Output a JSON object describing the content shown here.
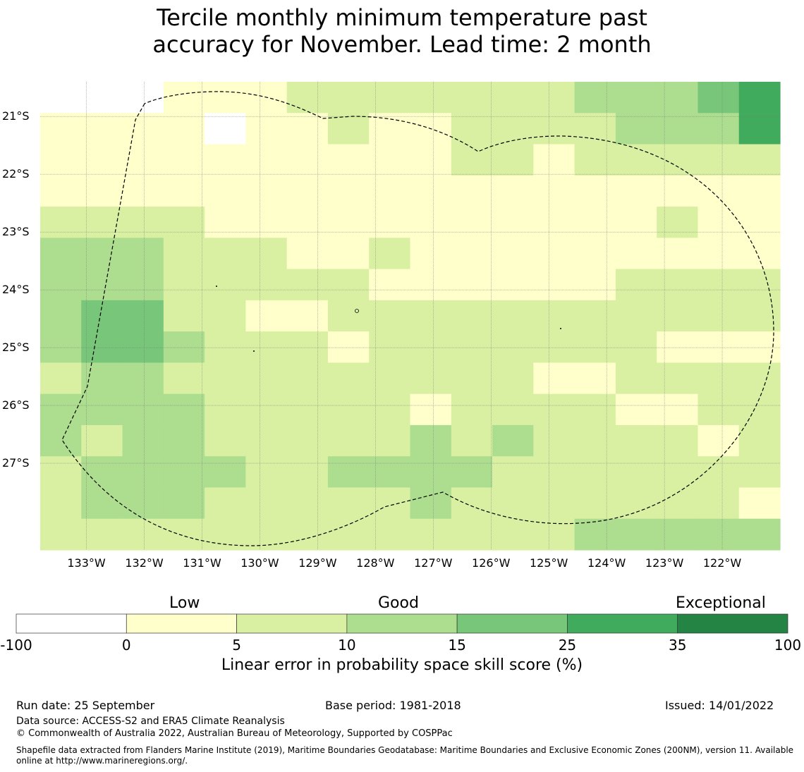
{
  "title_line1": "Tercile monthly minimum temperature past",
  "title_line2": "accuracy for November. Lead time: 2 month",
  "map": {
    "lon_min": -133.8,
    "lon_max": -121.0,
    "lat_top": -20.4,
    "lat_bottom": -28.5,
    "cell_size_deg": 0.5,
    "lat_ticks": [
      {
        "value": -21,
        "label": "21°S"
      },
      {
        "value": -22,
        "label": "22°S"
      },
      {
        "value": -23,
        "label": "23°S"
      },
      {
        "value": -24,
        "label": "24°S"
      },
      {
        "value": -25,
        "label": "25°S"
      },
      {
        "value": -26,
        "label": "26°S"
      },
      {
        "value": -27,
        "label": "27°S"
      }
    ],
    "lon_ticks": [
      {
        "value": -133,
        "label": "133°W"
      },
      {
        "value": -132,
        "label": "132°W"
      },
      {
        "value": -131,
        "label": "131°W"
      },
      {
        "value": -130,
        "label": "130°W"
      },
      {
        "value": -129,
        "label": "129°W"
      },
      {
        "value": -128,
        "label": "128°W"
      },
      {
        "value": -127,
        "label": "127°W"
      },
      {
        "value": -126,
        "label": "126°W"
      },
      {
        "value": -125,
        "label": "125°W"
      },
      {
        "value": -124,
        "label": "124°W"
      },
      {
        "value": -123,
        "label": "123°W"
      },
      {
        "value": -122,
        "label": "122°W"
      }
    ],
    "category_colors": [
      "#ffffff",
      "#ffffcc",
      "#d9f0a3",
      "#addd8e",
      "#78c679",
      "#41ab5d",
      "#238443"
    ],
    "grid_rows": [
      "000111222222233345",
      "111101121122223335",
      "111111111122122222",
      "111111111111111111",
      "222211111111111211",
      "333222112111111111",
      "333222221111112222",
      "344221122222222222",
      "344322212222222111",
      "233222222222112222",
      "333322222122221122",
      "323322222323222212",
      "233332233332222222",
      "233322222322222221",
      "222222222222233333"
    ]
  },
  "colorbar": {
    "categories": [
      "Low",
      "Good",
      "Exceptional"
    ],
    "ticks": [
      "-100",
      "0",
      "5",
      "10",
      "15",
      "25",
      "35",
      "100"
    ],
    "colors": [
      "#ffffff",
      "#ffffcc",
      "#d9f0a3",
      "#addd8e",
      "#78c679",
      "#41ab5d",
      "#238443"
    ],
    "title": "Linear error in probability space skill score (%)"
  },
  "footer": {
    "run_date": "Run date: 25 September",
    "base_period": "Base period: 1981-2018",
    "issued": "Issued: 14/01/2022",
    "data_source": "Data source: ACCESS-S2 and ERA5 Climate Reanalysis",
    "copyright": "© Commonwealth of Australia 2022, Australian Bureau of Meteorology, Supported by COSPPac",
    "shapefile_note": "Shapefile data extracted from Flanders Marine Institute (2019), Maritime Boundaries Geodatabase: Maritime Boundaries and Exclusive Economic Zones (200NM), version 11. Available online at http://www.marineregions.org/."
  }
}
